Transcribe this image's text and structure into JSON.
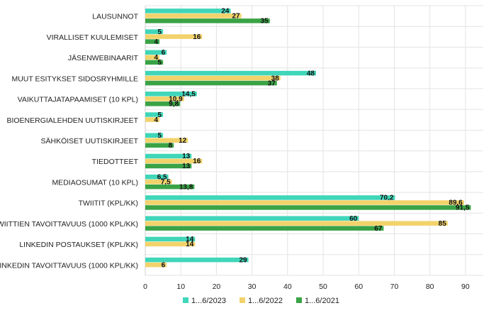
{
  "chart_data": {
    "type": "bar",
    "orientation": "horizontal",
    "categories": [
      "LAUSUNNOT",
      "VIRALLISET KUULEMISET",
      "JÄSENWEBINAARIT",
      "MUUT ESITYKSET SIDOSRYHMILLE",
      "VAIKUTTAJATAPAAMISET (10 KPL)",
      "BIOENERGIALEHDEN UUTISKIRJEET",
      "SÄHKÖISET UUTISKIRJEET",
      "TIEDOTTEET",
      "MEDIAOSUMAT (10 KPL)",
      "TWIITIT (KPL/KK)",
      "TWIITTIEN TAVOITTAVUUS (1000 KPL/KK)",
      "LINKEDIN POSTAUKSET (KPL/KK)",
      "LINKEDIN TAVOITTAVUUS (1000 KPL/KK)"
    ],
    "series": [
      {
        "name": "1...6/2023",
        "color": "#3fd6b9",
        "values": [
          24,
          5,
          6,
          48,
          14.5,
          5,
          5,
          13,
          6.5,
          70.2,
          60,
          14,
          29
        ],
        "labels": [
          "24",
          "5",
          "6",
          "48",
          "14,5",
          "5",
          "5",
          "13",
          "6,5",
          "70,2",
          "60",
          "14",
          "29"
        ]
      },
      {
        "name": "1...6/2022",
        "color": "#f2d36b",
        "values": [
          27,
          16,
          4,
          38,
          10.9,
          4,
          12,
          16,
          7.5,
          89.6,
          85,
          14,
          6
        ],
        "labels": [
          "27",
          "16",
          "4",
          "38",
          "10,9",
          "4",
          "12",
          "16",
          "7,5",
          "89,6",
          "85",
          "14",
          "6"
        ]
      },
      {
        "name": "1...6/2021",
        "color": "#3aa346",
        "values": [
          35,
          4,
          5,
          37,
          9.8,
          null,
          8,
          13,
          13.8,
          91.5,
          67,
          null,
          null
        ],
        "labels": [
          "35",
          "4",
          "5",
          "37",
          "9,8",
          null,
          "8",
          "13",
          "13,8",
          "91,5",
          "67",
          null,
          null
        ]
      }
    ],
    "xlim": [
      0,
      95
    ],
    "xticks": [
      "0",
      "10",
      "20",
      "30",
      "40",
      "50",
      "60",
      "70",
      "80",
      "90"
    ],
    "tick_values": [
      0,
      10,
      20,
      30,
      40,
      50,
      60,
      70,
      80,
      90
    ],
    "grid": true,
    "legend_position": "bottom"
  }
}
